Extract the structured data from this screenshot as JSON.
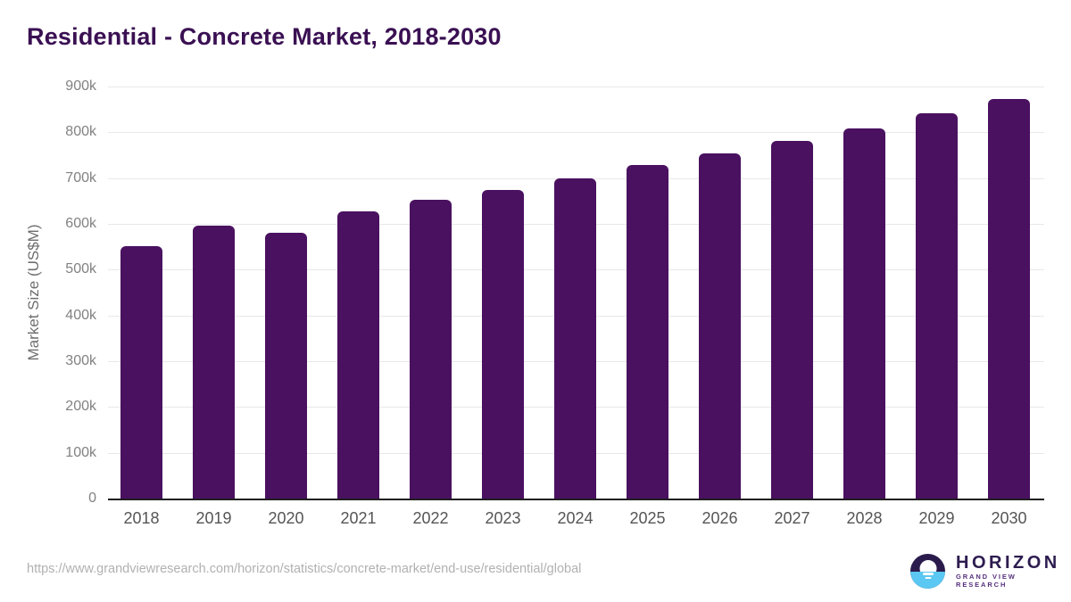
{
  "page": {
    "title": "Residential - Concrete Market, 2018-2030",
    "footer_url": "https://www.grandviewresearch.com/horizon/statistics/concrete-market/end-use/residential/global"
  },
  "logo": {
    "wordmark": "HORIZON",
    "subtitle": "GRAND VIEW RESEARCH"
  },
  "colors": {
    "title_text": "#3a1053",
    "bar": "#4a1160",
    "gridline": "#e8e8e8",
    "axis_line": "#1f1f1f",
    "y_tick_label": "#828282",
    "x_tick_label": "#555555",
    "footer_url": "#b1b1b1",
    "logo_navy": "#2b1b4d",
    "logo_blue": "#5ac8f2"
  },
  "chart_data": {
    "type": "bar",
    "title": "Residential - Concrete Market, 2018-2030",
    "categories": [
      "2018",
      "2019",
      "2020",
      "2021",
      "2022",
      "2023",
      "2024",
      "2025",
      "2026",
      "2027",
      "2028",
      "2029",
      "2030"
    ],
    "values": [
      552000,
      596000,
      580000,
      628000,
      652000,
      675000,
      700000,
      728000,
      753000,
      782000,
      808000,
      841000,
      872000
    ],
    "unit": "US$M",
    "xlabel": "",
    "ylabel": "Market Size (US$M)",
    "ylim": [
      0,
      900000
    ],
    "ytick_interval": 100000,
    "ytick_labels": [
      "0",
      "100k",
      "200k",
      "300k",
      "400k",
      "500k",
      "600k",
      "700k",
      "800k",
      "900k"
    ],
    "grid": "horizontal-only",
    "legend": "none",
    "bar_color": "#4a1160"
  }
}
